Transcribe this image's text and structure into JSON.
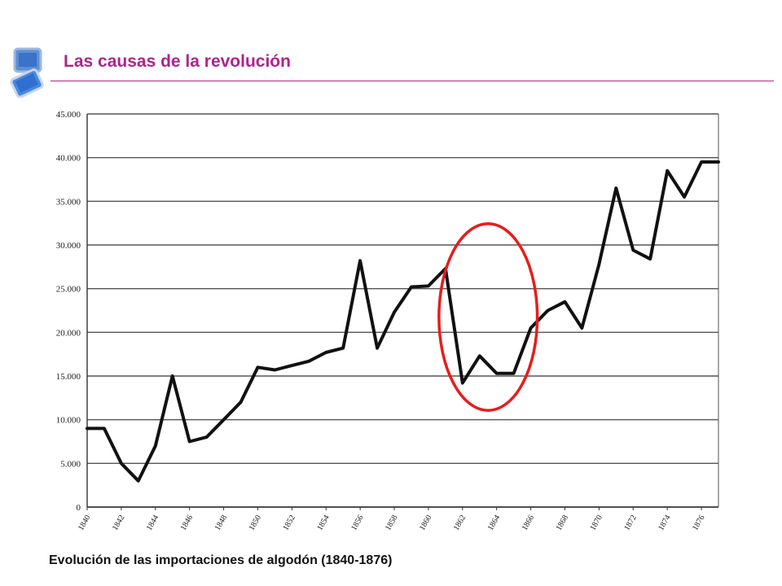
{
  "header": {
    "title": "Las causas de la revolución",
    "accent_color": "#b0238c",
    "logo_icon": "monitor-logo-icon"
  },
  "caption": "Evolución de las importaciones de algodón (1840-1876)",
  "chart_data": {
    "type": "line",
    "title": "",
    "xlabel": "",
    "ylabel": "",
    "ylim": [
      0,
      45000
    ],
    "yticks": [
      0,
      5000,
      10000,
      15000,
      20000,
      25000,
      30000,
      35000,
      40000,
      45000
    ],
    "ytick_labels": [
      "0",
      "5.000",
      "10.000",
      "15.000",
      "20.000",
      "25.000",
      "30.000",
      "35.000",
      "40.000",
      "45.000"
    ],
    "xlim": [
      1840,
      1877
    ],
    "xtick_labels": [
      "1840",
      "1842",
      "1844",
      "1846",
      "1848",
      "1850",
      "1852",
      "1854",
      "1856",
      "1858",
      "1860",
      "1862",
      "1864",
      "1866",
      "1868",
      "1870",
      "1872",
      "1874",
      "1876"
    ],
    "grid": true,
    "line_color": "#111111",
    "series": [
      {
        "x": [
          1840,
          1841,
          1842,
          1843,
          1844,
          1845,
          1846,
          1847,
          1848,
          1849,
          1850,
          1851,
          1852,
          1853,
          1854,
          1855,
          1856,
          1857,
          1858,
          1859,
          1860,
          1861,
          1862,
          1863,
          1864,
          1865,
          1866,
          1867,
          1868,
          1869,
          1870,
          1871,
          1872,
          1873,
          1874,
          1875,
          1876,
          1877
        ],
        "values": [
          9000,
          9000,
          5000,
          3000,
          7000,
          15000,
          7500,
          8000,
          10000,
          12000,
          16000,
          15700,
          16200,
          16700,
          17700,
          18200,
          28200,
          18200,
          22300,
          25200,
          25300,
          27300,
          14200,
          17300,
          15300,
          15300,
          20500,
          22500,
          23500,
          20500,
          27800,
          36500,
          29400,
          28400,
          38500,
          35500,
          39500,
          39500
        ]
      }
    ],
    "annotation": {
      "type": "ellipse",
      "color": "#e81c1c",
      "x_range": [
        1861,
        1866
      ],
      "y_range": [
        12000,
        31500
      ]
    }
  }
}
